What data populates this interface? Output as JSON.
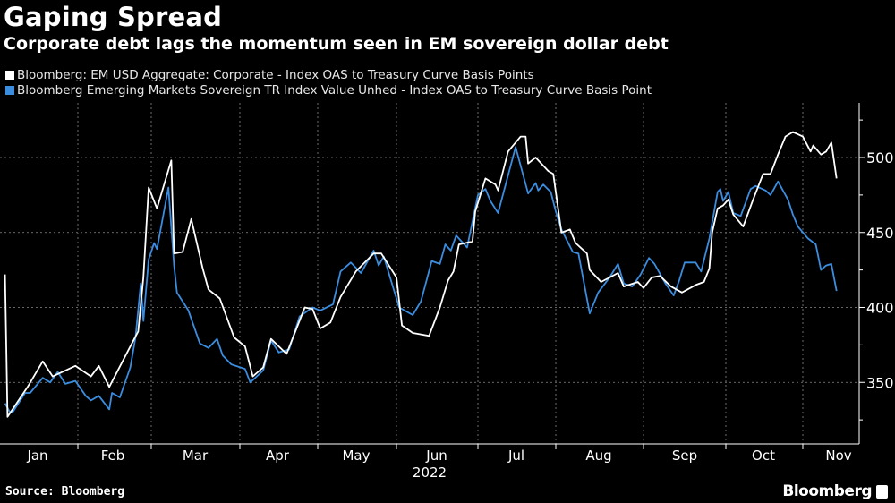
{
  "chart_data": {
    "type": "line",
    "title": "Gaping Spread",
    "subtitle": "Corporate debt lags the momentum seen in EM sovereign dollar debt",
    "xlabel": "2022",
    "ylabel": "",
    "x_tick_labels": [
      "Jan",
      "Feb",
      "Mar",
      "Apr",
      "May",
      "Jun",
      "Jul",
      "Aug",
      "Sep",
      "Oct",
      "Nov"
    ],
    "y_ticks": [
      350,
      400,
      450,
      500
    ],
    "y_tick_labels": [
      "350",
      "400",
      "450",
      "500"
    ],
    "ylim": [
      310,
      536
    ],
    "xlim": [
      "2022-01-01",
      "2022-11-30"
    ],
    "y_axis_side": "right",
    "grid": true,
    "legend_placement": "top-left",
    "series": [
      {
        "name": "Bloomberg: EM USD Aggregate: Corporate - Index OAS to Treasury Curve Basis Points",
        "color": "#ffffff",
        "points": [
          [
            "2022-01-03",
            422
          ],
          [
            "2022-01-04",
            327
          ],
          [
            "2022-01-12",
            347
          ],
          [
            "2022-01-18",
            364
          ],
          [
            "2022-01-22",
            354
          ],
          [
            "2022-01-31",
            361
          ],
          [
            "2022-02-06",
            354
          ],
          [
            "2022-02-09",
            361
          ],
          [
            "2022-02-13",
            347
          ],
          [
            "2022-02-21",
            374
          ],
          [
            "2022-02-24",
            384
          ],
          [
            "2022-02-26",
            420
          ],
          [
            "2022-02-28",
            480
          ],
          [
            "2022-03-03",
            466
          ],
          [
            "2022-03-08",
            498
          ],
          [
            "2022-03-09",
            436
          ],
          [
            "2022-03-12",
            437
          ],
          [
            "2022-03-15",
            459
          ],
          [
            "2022-03-19",
            426
          ],
          [
            "2022-03-21",
            412
          ],
          [
            "2022-03-25",
            406
          ],
          [
            "2022-03-30",
            380
          ],
          [
            "2022-04-03",
            374
          ],
          [
            "2022-04-06",
            354
          ],
          [
            "2022-04-10",
            360
          ],
          [
            "2022-04-13",
            379
          ],
          [
            "2022-04-19",
            369
          ],
          [
            "2022-04-26",
            400
          ],
          [
            "2022-04-29",
            399
          ],
          [
            "2022-05-02",
            386
          ],
          [
            "2022-05-06",
            390
          ],
          [
            "2022-05-10",
            407
          ],
          [
            "2022-05-16",
            424
          ],
          [
            "2022-05-23",
            436
          ],
          [
            "2022-05-26",
            436
          ],
          [
            "2022-06-01",
            420
          ],
          [
            "2022-06-03",
            388
          ],
          [
            "2022-06-07",
            383
          ],
          [
            "2022-06-13",
            381
          ],
          [
            "2022-06-17",
            400
          ],
          [
            "2022-06-20",
            418
          ],
          [
            "2022-06-22",
            424
          ],
          [
            "2022-06-24",
            442
          ],
          [
            "2022-06-29",
            444
          ],
          [
            "2022-06-30",
            464
          ],
          [
            "2022-07-04",
            486
          ],
          [
            "2022-07-08",
            482
          ],
          [
            "2022-07-09",
            478
          ],
          [
            "2022-07-13",
            504
          ],
          [
            "2022-07-18",
            514
          ],
          [
            "2022-07-20",
            514
          ],
          [
            "2022-07-21",
            496
          ],
          [
            "2022-07-24",
            500
          ],
          [
            "2022-07-29",
            491
          ],
          [
            "2022-07-31",
            489
          ],
          [
            "2022-08-03",
            450
          ],
          [
            "2022-08-06",
            452
          ],
          [
            "2022-08-08",
            443
          ],
          [
            "2022-08-12",
            436
          ],
          [
            "2022-08-13",
            425
          ],
          [
            "2022-08-17",
            417
          ],
          [
            "2022-08-20",
            420
          ],
          [
            "2022-08-23",
            423
          ],
          [
            "2022-08-25",
            414
          ],
          [
            "2022-08-30",
            417
          ],
          [
            "2022-09-01",
            413
          ],
          [
            "2022-09-04",
            420
          ],
          [
            "2022-09-07",
            421
          ],
          [
            "2022-09-11",
            414
          ],
          [
            "2022-09-15",
            410
          ],
          [
            "2022-09-20",
            415
          ],
          [
            "2022-09-23",
            417
          ],
          [
            "2022-09-25",
            426
          ],
          [
            "2022-09-26",
            450
          ],
          [
            "2022-09-28",
            466
          ],
          [
            "2022-09-30",
            468
          ],
          [
            "2022-10-02",
            472
          ],
          [
            "2022-10-04",
            462
          ],
          [
            "2022-10-08",
            454
          ],
          [
            "2022-10-12",
            472
          ],
          [
            "2022-10-16",
            489
          ],
          [
            "2022-10-19",
            489
          ],
          [
            "2022-10-22",
            502
          ],
          [
            "2022-10-25",
            514
          ],
          [
            "2022-10-28",
            517
          ],
          [
            "2022-11-01",
            514
          ],
          [
            "2022-11-04",
            504
          ],
          [
            "2022-11-05",
            508
          ],
          [
            "2022-11-08",
            502
          ],
          [
            "2022-11-10",
            504
          ],
          [
            "2022-11-12",
            510
          ],
          [
            "2022-11-14",
            486
          ]
        ]
      },
      {
        "name": "Bloomberg Emerging Markets Sovereign TR Index Value Unhed - Index OAS to Treasury Curve Basis Point",
        "color": "#3b8de0",
        "points": [
          [
            "2022-01-03",
            336
          ],
          [
            "2022-01-05",
            330
          ],
          [
            "2022-01-06",
            330
          ],
          [
            "2022-01-11",
            343
          ],
          [
            "2022-01-13",
            343
          ],
          [
            "2022-01-18",
            353
          ],
          [
            "2022-01-21",
            350
          ],
          [
            "2022-01-24",
            357
          ],
          [
            "2022-01-27",
            349
          ],
          [
            "2022-01-31",
            351
          ],
          [
            "2022-02-04",
            341
          ],
          [
            "2022-02-06",
            338
          ],
          [
            "2022-02-09",
            341
          ],
          [
            "2022-02-13",
            332
          ],
          [
            "2022-02-14",
            343
          ],
          [
            "2022-02-17",
            340
          ],
          [
            "2022-02-21",
            360
          ],
          [
            "2022-02-23",
            380
          ],
          [
            "2022-02-25",
            416
          ],
          [
            "2022-02-26",
            391
          ],
          [
            "2022-02-28",
            432
          ],
          [
            "2022-03-02",
            443
          ],
          [
            "2022-03-03",
            439
          ],
          [
            "2022-03-07",
            480
          ],
          [
            "2022-03-09",
            428
          ],
          [
            "2022-03-10",
            410
          ],
          [
            "2022-03-14",
            398
          ],
          [
            "2022-03-18",
            376
          ],
          [
            "2022-03-21",
            373
          ],
          [
            "2022-03-24",
            379
          ],
          [
            "2022-03-26",
            368
          ],
          [
            "2022-03-29",
            362
          ],
          [
            "2022-04-03",
            359
          ],
          [
            "2022-04-05",
            350
          ],
          [
            "2022-04-10",
            358
          ],
          [
            "2022-04-13",
            378
          ],
          [
            "2022-04-16",
            370
          ],
          [
            "2022-04-20",
            372
          ],
          [
            "2022-04-24",
            394
          ],
          [
            "2022-04-29",
            400
          ],
          [
            "2022-05-02",
            398
          ],
          [
            "2022-05-07",
            402
          ],
          [
            "2022-05-10",
            424
          ],
          [
            "2022-05-14",
            430
          ],
          [
            "2022-05-18",
            423
          ],
          [
            "2022-05-23",
            438
          ],
          [
            "2022-05-25",
            428
          ],
          [
            "2022-05-27",
            434
          ],
          [
            "2022-06-02",
            400
          ],
          [
            "2022-06-07",
            395
          ],
          [
            "2022-06-10",
            404
          ],
          [
            "2022-06-14",
            431
          ],
          [
            "2022-06-17",
            429
          ],
          [
            "2022-06-19",
            442
          ],
          [
            "2022-06-21",
            438
          ],
          [
            "2022-06-23",
            448
          ],
          [
            "2022-06-27",
            440
          ],
          [
            "2022-07-01",
            475
          ],
          [
            "2022-07-04",
            479
          ],
          [
            "2022-07-06",
            471
          ],
          [
            "2022-07-09",
            463
          ],
          [
            "2022-07-16",
            507
          ],
          [
            "2022-07-21",
            476
          ],
          [
            "2022-07-24",
            483
          ],
          [
            "2022-07-25",
            478
          ],
          [
            "2022-07-27",
            482
          ],
          [
            "2022-07-30",
            477
          ],
          [
            "2022-08-01",
            464
          ],
          [
            "2022-08-03",
            452
          ],
          [
            "2022-08-07",
            437
          ],
          [
            "2022-08-09",
            436
          ],
          [
            "2022-08-13",
            396
          ],
          [
            "2022-08-16",
            410
          ],
          [
            "2022-08-20",
            420
          ],
          [
            "2022-08-23",
            429
          ],
          [
            "2022-08-25",
            416
          ],
          [
            "2022-08-28",
            414
          ],
          [
            "2022-08-31",
            422
          ],
          [
            "2022-09-03",
            433
          ],
          [
            "2022-09-05",
            429
          ],
          [
            "2022-09-09",
            416
          ],
          [
            "2022-09-12",
            408
          ],
          [
            "2022-09-14",
            418
          ],
          [
            "2022-09-16",
            430
          ],
          [
            "2022-09-20",
            430
          ],
          [
            "2022-09-22",
            424
          ],
          [
            "2022-09-25",
            446
          ],
          [
            "2022-09-28",
            477
          ],
          [
            "2022-09-29",
            479
          ],
          [
            "2022-09-30",
            471
          ],
          [
            "2022-10-02",
            477
          ],
          [
            "2022-10-04",
            463
          ],
          [
            "2022-10-07",
            461
          ],
          [
            "2022-10-11",
            479
          ],
          [
            "2022-10-13",
            481
          ],
          [
            "2022-10-17",
            478
          ],
          [
            "2022-10-19",
            475
          ],
          [
            "2022-10-22",
            484
          ],
          [
            "2022-10-26",
            472
          ],
          [
            "2022-10-28",
            462
          ],
          [
            "2022-10-30",
            454
          ],
          [
            "2022-11-03",
            446
          ],
          [
            "2022-11-06",
            442
          ],
          [
            "2022-11-08",
            425
          ],
          [
            "2022-11-10",
            428
          ],
          [
            "2022-11-12",
            429
          ],
          [
            "2022-11-14",
            411
          ]
        ]
      }
    ]
  },
  "footer": {
    "source": "Source: Bloomberg",
    "brand": "Bloomberg"
  },
  "icons": {
    "brand": "bloomberg-logo-icon"
  }
}
